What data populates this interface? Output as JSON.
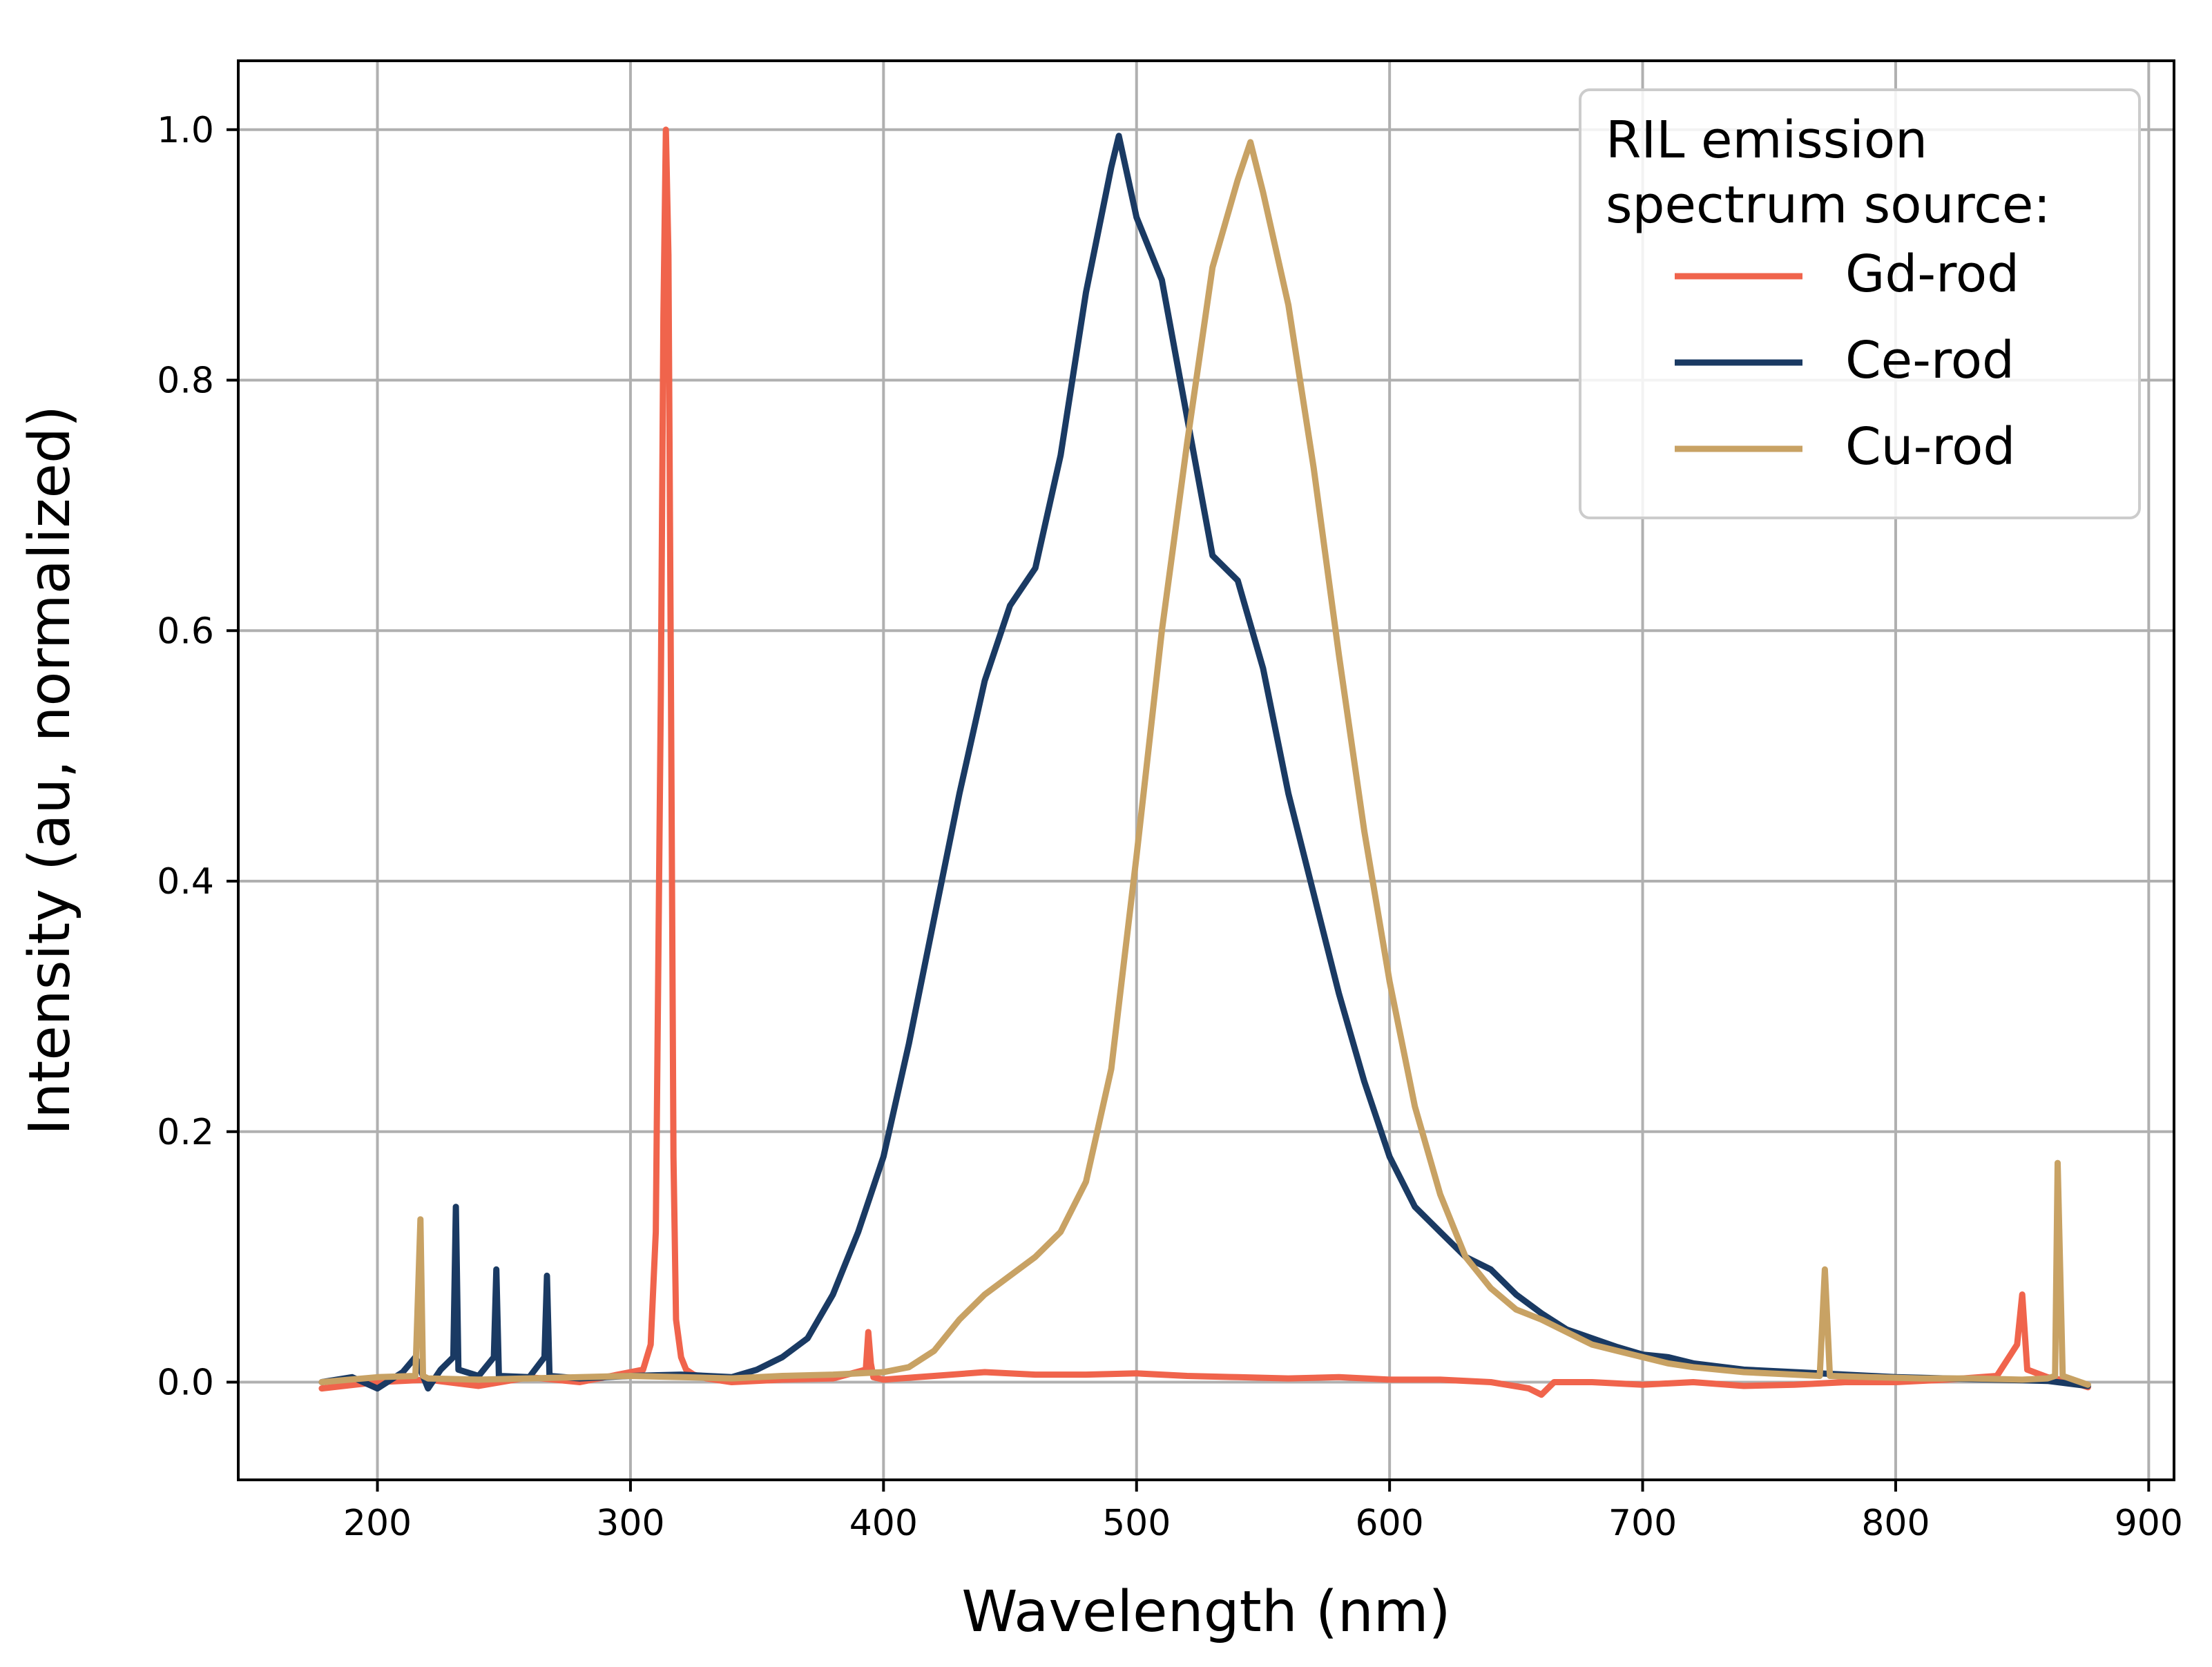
{
  "chart_data": {
    "type": "line",
    "title": "",
    "xlabel": "Wavelength (nm)",
    "ylabel": "Intensity (au, normalized)",
    "xlim": [
      145,
      910
    ],
    "ylim": [
      -0.078,
      1.055
    ],
    "xticks": [
      200,
      300,
      400,
      500,
      600,
      700,
      800,
      900
    ],
    "xtick_labels": [
      "200",
      "300",
      "400",
      "500",
      "600",
      "700",
      "800",
      "900"
    ],
    "yticks": [
      0.0,
      0.2,
      0.4,
      0.6,
      0.8,
      1.0
    ],
    "ytick_labels": [
      "0.0",
      "0.2",
      "0.4",
      "0.6",
      "0.8",
      "1.0"
    ],
    "grid": true,
    "legend": {
      "title": [
        "RIL emission",
        "spectrum source:"
      ],
      "position": "top-right"
    },
    "series": [
      {
        "name": "Gd-rod",
        "color": "#f0644c",
        "x": [
          178,
          200,
          220,
          240,
          260,
          280,
          300,
          305,
          308,
          310,
          312,
          313,
          314,
          315,
          316,
          317,
          318,
          320,
          322,
          325,
          330,
          340,
          360,
          380,
          393,
          394,
          395,
          396,
          400,
          420,
          440,
          460,
          480,
          500,
          520,
          540,
          560,
          580,
          600,
          620,
          640,
          655,
          660,
          665,
          680,
          700,
          720,
          740,
          760,
          780,
          800,
          820,
          840,
          848,
          850,
          852,
          860,
          870,
          876
        ],
        "values": [
          -0.005,
          0.0,
          0.002,
          -0.003,
          0.004,
          0.0,
          0.008,
          0.01,
          0.03,
          0.12,
          0.55,
          0.85,
          1.0,
          0.9,
          0.55,
          0.18,
          0.05,
          0.02,
          0.01,
          0.006,
          0.003,
          0.0,
          0.002,
          0.003,
          0.01,
          0.04,
          0.015,
          0.004,
          0.002,
          0.005,
          0.008,
          0.006,
          0.006,
          0.007,
          0.005,
          0.004,
          0.003,
          0.004,
          0.002,
          0.002,
          0.0,
          -0.005,
          -0.01,
          0.0,
          0.0,
          -0.002,
          0.0,
          -0.003,
          -0.002,
          0.0,
          0.0,
          0.002,
          0.005,
          0.03,
          0.07,
          0.01,
          0.004,
          0.0,
          -0.004
        ]
      },
      {
        "name": "Ce-rod",
        "color": "#1a3a63",
        "x": [
          178,
          190,
          200,
          210,
          215,
          220,
          225,
          230,
          231,
          232,
          240,
          246,
          247,
          248,
          260,
          266,
          267,
          268,
          280,
          300,
          320,
          340,
          350,
          360,
          370,
          380,
          390,
          400,
          410,
          420,
          430,
          440,
          450,
          460,
          470,
          480,
          490,
          493,
          500,
          510,
          520,
          530,
          540,
          550,
          560,
          570,
          580,
          590,
          600,
          610,
          620,
          630,
          640,
          650,
          660,
          670,
          680,
          690,
          700,
          710,
          720,
          740,
          760,
          780,
          800,
          820,
          840,
          860,
          876
        ],
        "values": [
          0.0,
          0.004,
          -0.005,
          0.008,
          0.02,
          -0.005,
          0.01,
          0.02,
          0.14,
          0.01,
          0.005,
          0.02,
          0.09,
          0.005,
          0.004,
          0.02,
          0.085,
          0.005,
          0.003,
          0.005,
          0.006,
          0.004,
          0.01,
          0.02,
          0.035,
          0.07,
          0.12,
          0.18,
          0.27,
          0.37,
          0.47,
          0.56,
          0.62,
          0.65,
          0.74,
          0.87,
          0.97,
          0.995,
          0.93,
          0.88,
          0.77,
          0.66,
          0.64,
          0.57,
          0.47,
          0.39,
          0.31,
          0.24,
          0.18,
          0.14,
          0.12,
          0.1,
          0.09,
          0.07,
          0.055,
          0.042,
          0.035,
          0.028,
          0.022,
          0.02,
          0.015,
          0.01,
          0.008,
          0.006,
          0.004,
          0.003,
          0.002,
          0.001,
          -0.003
        ]
      },
      {
        "name": "Cu-rod",
        "color": "#c8a264",
        "x": [
          178,
          200,
          215,
          217,
          218,
          220,
          240,
          260,
          280,
          300,
          320,
          340,
          360,
          380,
          400,
          410,
          420,
          430,
          440,
          450,
          460,
          470,
          480,
          490,
          500,
          510,
          520,
          530,
          540,
          545,
          550,
          560,
          570,
          580,
          590,
          600,
          610,
          620,
          630,
          640,
          650,
          660,
          670,
          680,
          690,
          700,
          710,
          720,
          740,
          760,
          770,
          772,
          774,
          790,
          810,
          830,
          850,
          860,
          863,
          864,
          866,
          876
        ],
        "values": [
          0.0,
          0.004,
          0.005,
          0.13,
          0.005,
          0.003,
          0.002,
          0.003,
          0.004,
          0.005,
          0.004,
          0.003,
          0.005,
          0.006,
          0.008,
          0.012,
          0.025,
          0.05,
          0.07,
          0.085,
          0.1,
          0.12,
          0.16,
          0.25,
          0.42,
          0.6,
          0.75,
          0.89,
          0.96,
          0.99,
          0.95,
          0.86,
          0.73,
          0.58,
          0.44,
          0.32,
          0.22,
          0.15,
          0.1,
          0.075,
          0.058,
          0.05,
          0.04,
          0.03,
          0.025,
          0.02,
          0.015,
          0.012,
          0.008,
          0.006,
          0.005,
          0.09,
          0.005,
          0.004,
          0.003,
          0.003,
          0.002,
          0.003,
          0.005,
          0.175,
          0.005,
          -0.002
        ]
      }
    ]
  }
}
